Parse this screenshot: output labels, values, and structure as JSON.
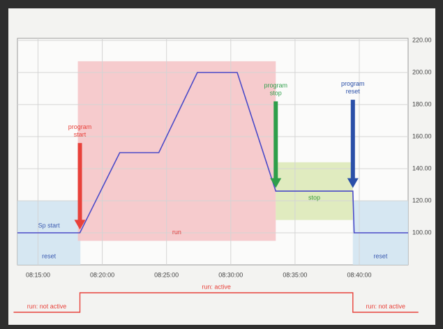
{
  "chart_data": {
    "type": "line",
    "x": [
      13.4,
      18.26,
      21.36,
      24.4,
      27.4,
      30.5,
      33.5,
      39.5,
      39.6,
      43.8
    ],
    "values": [
      100,
      100,
      150,
      150,
      200,
      200,
      126,
      126,
      100,
      100
    ],
    "color": "#4a4ac8",
    "xlim": [
      13.4,
      43.8
    ],
    "ylim": [
      80,
      220
    ],
    "xticks": [
      {
        "value": 15,
        "label": "08:15:00"
      },
      {
        "value": 20,
        "label": "08:20:00"
      },
      {
        "value": 25,
        "label": "08:25:00"
      },
      {
        "value": 30,
        "label": "08:30:00"
      },
      {
        "value": 35,
        "label": "08:35:00"
      },
      {
        "value": 40,
        "label": "08:40:00"
      }
    ],
    "yticks": [
      {
        "value": 100,
        "label": "100.00"
      },
      {
        "value": 120,
        "label": "120.00"
      },
      {
        "value": 140,
        "label": "140.00"
      },
      {
        "value": 160,
        "label": "160.00"
      },
      {
        "value": 180,
        "label": "180.00"
      },
      {
        "value": 200,
        "label": "200.00"
      },
      {
        "value": 220,
        "label": "220.00"
      }
    ],
    "grid": true,
    "regions": [
      {
        "label": "reset",
        "x0": 13.4,
        "x1": 18.3,
        "y0": 80,
        "y1": 120,
        "color": "#cfe3f0",
        "text_color": "#3a5ab0"
      },
      {
        "label": "run",
        "x0": 18.1,
        "x1": 33.5,
        "y0": 95,
        "y1": 207,
        "color": "#f4c2c4",
        "text_color": "#e04040"
      },
      {
        "label": "stop",
        "x0": 33.5,
        "x1": 39.5,
        "y0": 108,
        "y1": 144,
        "color": "#dbe8b4",
        "text_color": "#3a9a3a"
      },
      {
        "label": "reset",
        "x0": 39.5,
        "x1": 43.8,
        "y0": 80,
        "y1": 120,
        "color": "#cfe3f0",
        "text_color": "#3a5ab0"
      }
    ],
    "sp_label": "Sp start",
    "arrows": [
      {
        "label": "program start",
        "x": 18.26,
        "y_from": 156,
        "y_to": 102,
        "color": "#e8413a"
      },
      {
        "label": "program stop",
        "x": 33.5,
        "y_from": 182,
        "y_to": 128,
        "color": "#2e9e4a"
      },
      {
        "label": "program reset",
        "x": 39.5,
        "y_from": 183,
        "y_to": 128,
        "color": "#2a4fa8"
      }
    ],
    "status": [
      {
        "label": "run: not active",
        "x0": 13.1,
        "x1": 18.26,
        "active": false
      },
      {
        "label": "run: active",
        "x0": 18.26,
        "x1": 39.5,
        "active": true
      },
      {
        "label": "run: not active",
        "x0": 39.5,
        "x1": 44.6,
        "active": false
      }
    ]
  }
}
